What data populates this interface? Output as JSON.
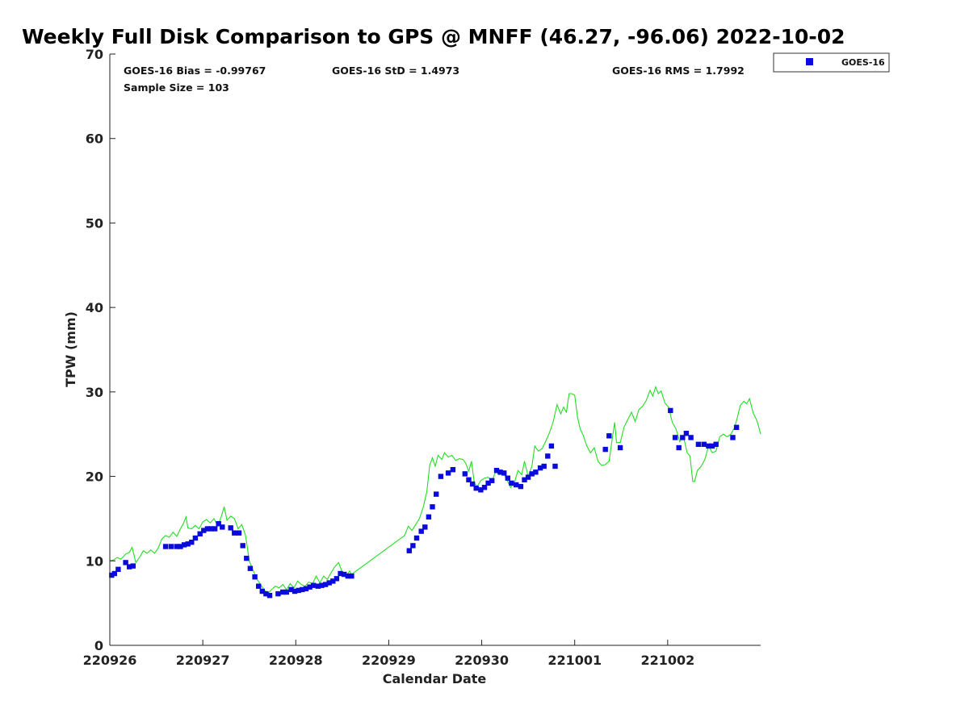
{
  "chart_data": {
    "type": "scatter",
    "title": "Weekly Full Disk Comparison to GPS @ MNFF (46.27, -96.06) 2022-10-02",
    "xlabel": "Calendar Date",
    "ylabel": "TPW (mm)",
    "xlim": [
      0,
      7
    ],
    "ylim": [
      0,
      70
    ],
    "x_unit": "days after 220926",
    "x_ticks": [
      {
        "value": 0,
        "label": "220926"
      },
      {
        "value": 1,
        "label": "220927"
      },
      {
        "value": 2,
        "label": "220928"
      },
      {
        "value": 3,
        "label": "220929"
      },
      {
        "value": 4,
        "label": "220930"
      },
      {
        "value": 5,
        "label": "221001"
      },
      {
        "value": 6,
        "label": "221002"
      }
    ],
    "y_ticks": [
      0,
      10,
      20,
      30,
      40,
      50,
      60,
      70
    ],
    "grid": false,
    "legend": {
      "placement": "top-right",
      "entries": [
        "GOES-16"
      ]
    },
    "stats": {
      "bias": "GOES-16 Bias = -0.99767",
      "std": "GOES-16 StD = 1.4973",
      "rms": "GOES-16 RMS = 1.7992",
      "sample": "Sample Size = 103"
    },
    "colors": {
      "goes": "#0a0adc",
      "gps": "#22dd22"
    },
    "series": [
      {
        "name": "GOES-16",
        "kind": "scatter",
        "points": [
          [
            0.02,
            8.3
          ],
          [
            0.05,
            8.5
          ],
          [
            0.09,
            9.0
          ],
          [
            0.17,
            9.8
          ],
          [
            0.21,
            9.3
          ],
          [
            0.25,
            9.4
          ],
          [
            0.6,
            11.7
          ],
          [
            0.66,
            11.7
          ],
          [
            0.72,
            11.7
          ],
          [
            0.76,
            11.7
          ],
          [
            0.8,
            11.9
          ],
          [
            0.84,
            12.0
          ],
          [
            0.88,
            12.2
          ],
          [
            0.92,
            12.7
          ],
          [
            0.97,
            13.2
          ],
          [
            1.01,
            13.6
          ],
          [
            1.05,
            13.8
          ],
          [
            1.09,
            13.8
          ],
          [
            1.13,
            13.8
          ],
          [
            1.17,
            14.4
          ],
          [
            1.21,
            14.0
          ],
          [
            1.3,
            13.9
          ],
          [
            1.34,
            13.3
          ],
          [
            1.39,
            13.3
          ],
          [
            1.43,
            11.8
          ],
          [
            1.47,
            10.3
          ],
          [
            1.51,
            9.1
          ],
          [
            1.56,
            8.1
          ],
          [
            1.6,
            7.0
          ],
          [
            1.64,
            6.4
          ],
          [
            1.68,
            6.1
          ],
          [
            1.72,
            5.9
          ],
          [
            1.81,
            6.1
          ],
          [
            1.86,
            6.3
          ],
          [
            1.9,
            6.3
          ],
          [
            1.95,
            6.6
          ],
          [
            1.99,
            6.4
          ],
          [
            2.03,
            6.5
          ],
          [
            2.07,
            6.6
          ],
          [
            2.11,
            6.7
          ],
          [
            2.15,
            6.9
          ],
          [
            2.19,
            7.1
          ],
          [
            2.24,
            7.0
          ],
          [
            2.28,
            7.1
          ],
          [
            2.32,
            7.2
          ],
          [
            2.36,
            7.4
          ],
          [
            2.4,
            7.6
          ],
          [
            2.44,
            7.9
          ],
          [
            2.48,
            8.5
          ],
          [
            2.52,
            8.4
          ],
          [
            2.56,
            8.2
          ],
          [
            2.6,
            8.2
          ],
          [
            3.22,
            11.2
          ],
          [
            3.26,
            11.8
          ],
          [
            3.3,
            12.7
          ],
          [
            3.35,
            13.5
          ],
          [
            3.39,
            14.0
          ],
          [
            3.43,
            15.2
          ],
          [
            3.47,
            16.4
          ],
          [
            3.51,
            17.9
          ],
          [
            3.56,
            20.0
          ],
          [
            3.64,
            20.4
          ],
          [
            3.69,
            20.8
          ],
          [
            3.82,
            20.3
          ],
          [
            3.86,
            19.6
          ],
          [
            3.9,
            19.1
          ],
          [
            3.94,
            18.6
          ],
          [
            3.99,
            18.4
          ],
          [
            4.03,
            18.7
          ],
          [
            4.07,
            19.2
          ],
          [
            4.11,
            19.5
          ],
          [
            4.16,
            20.7
          ],
          [
            4.2,
            20.5
          ],
          [
            4.24,
            20.4
          ],
          [
            4.28,
            19.8
          ],
          [
            4.32,
            19.2
          ],
          [
            4.37,
            19.0
          ],
          [
            4.42,
            18.8
          ],
          [
            4.46,
            19.6
          ],
          [
            4.5,
            19.9
          ],
          [
            4.54,
            20.3
          ],
          [
            4.58,
            20.5
          ],
          [
            4.63,
            21.0
          ],
          [
            4.67,
            21.2
          ],
          [
            4.71,
            22.4
          ],
          [
            4.75,
            23.6
          ],
          [
            4.79,
            21.2
          ],
          [
            5.33,
            23.2
          ],
          [
            5.37,
            24.8
          ],
          [
            5.49,
            23.4
          ],
          [
            6.03,
            27.8
          ],
          [
            6.08,
            24.6
          ],
          [
            6.12,
            23.4
          ],
          [
            6.16,
            24.6
          ],
          [
            6.2,
            25.1
          ],
          [
            6.25,
            24.6
          ],
          [
            6.33,
            23.8
          ],
          [
            6.39,
            23.8
          ],
          [
            6.44,
            23.6
          ],
          [
            6.48,
            23.6
          ],
          [
            6.52,
            23.8
          ],
          [
            6.7,
            24.6
          ],
          [
            6.74,
            25.8
          ]
        ]
      },
      {
        "name": "",
        "kind": "line",
        "points": [
          [
            0.0,
            10.0
          ],
          [
            0.04,
            10.1
          ],
          [
            0.08,
            10.4
          ],
          [
            0.12,
            10.2
          ],
          [
            0.17,
            10.8
          ],
          [
            0.21,
            11.0
          ],
          [
            0.24,
            11.6
          ],
          [
            0.28,
            9.8
          ],
          [
            0.33,
            10.6
          ],
          [
            0.36,
            11.2
          ],
          [
            0.4,
            10.9
          ],
          [
            0.44,
            11.3
          ],
          [
            0.48,
            10.9
          ],
          [
            0.52,
            11.5
          ],
          [
            0.56,
            12.6
          ],
          [
            0.6,
            13.0
          ],
          [
            0.64,
            12.8
          ],
          [
            0.68,
            13.4
          ],
          [
            0.72,
            12.9
          ],
          [
            0.76,
            13.8
          ],
          [
            0.79,
            14.4
          ],
          [
            0.82,
            15.2
          ],
          [
            0.84,
            13.9
          ],
          [
            0.88,
            13.8
          ],
          [
            0.92,
            14.2
          ],
          [
            0.96,
            13.8
          ],
          [
            1.0,
            14.6
          ],
          [
            1.04,
            14.9
          ],
          [
            1.08,
            14.5
          ],
          [
            1.12,
            15.0
          ],
          [
            1.16,
            14.1
          ],
          [
            1.2,
            15.3
          ],
          [
            1.23,
            16.4
          ],
          [
            1.26,
            14.8
          ],
          [
            1.3,
            15.3
          ],
          [
            1.34,
            15.0
          ],
          [
            1.38,
            13.8
          ],
          [
            1.42,
            14.3
          ],
          [
            1.46,
            13.0
          ],
          [
            1.5,
            10.0
          ],
          [
            1.54,
            8.9
          ],
          [
            1.58,
            7.9
          ],
          [
            1.62,
            7.2
          ],
          [
            1.66,
            6.6
          ],
          [
            1.7,
            6.1
          ],
          [
            1.74,
            6.6
          ],
          [
            1.78,
            7.0
          ],
          [
            1.82,
            6.8
          ],
          [
            1.86,
            7.2
          ],
          [
            1.9,
            6.6
          ],
          [
            1.94,
            7.3
          ],
          [
            1.98,
            6.8
          ],
          [
            2.02,
            7.6
          ],
          [
            2.06,
            7.2
          ],
          [
            2.1,
            7.0
          ],
          [
            2.14,
            7.5
          ],
          [
            2.18,
            7.3
          ],
          [
            2.22,
            8.2
          ],
          [
            2.26,
            7.4
          ],
          [
            2.3,
            8.2
          ],
          [
            2.34,
            7.8
          ],
          [
            2.38,
            8.6
          ],
          [
            2.42,
            9.3
          ],
          [
            2.46,
            9.8
          ],
          [
            2.5,
            8.6
          ],
          [
            2.54,
            8.2
          ],
          [
            2.58,
            8.8
          ],
          [
            2.6,
            8.4
          ],
          [
            3.17,
            13.0
          ],
          [
            3.21,
            14.1
          ],
          [
            3.25,
            13.6
          ],
          [
            3.29,
            14.3
          ],
          [
            3.33,
            15.0
          ],
          [
            3.37,
            16.3
          ],
          [
            3.41,
            18.2
          ],
          [
            3.44,
            21.3
          ],
          [
            3.47,
            22.2
          ],
          [
            3.5,
            21.2
          ],
          [
            3.53,
            22.5
          ],
          [
            3.57,
            22.0
          ],
          [
            3.6,
            22.8
          ],
          [
            3.64,
            22.3
          ],
          [
            3.68,
            22.5
          ],
          [
            3.72,
            21.9
          ],
          [
            3.76,
            22.1
          ],
          [
            3.8,
            22.0
          ],
          [
            3.83,
            21.5
          ],
          [
            3.86,
            20.6
          ],
          [
            3.89,
            21.8
          ],
          [
            3.92,
            19.2
          ],
          [
            3.95,
            18.8
          ],
          [
            3.99,
            19.5
          ],
          [
            4.03,
            19.8
          ],
          [
            4.07,
            19.9
          ],
          [
            4.11,
            19.4
          ],
          [
            4.15,
            20.6
          ],
          [
            4.19,
            20.2
          ],
          [
            4.23,
            20.5
          ],
          [
            4.27,
            19.6
          ],
          [
            4.31,
            18.7
          ],
          [
            4.35,
            19.2
          ],
          [
            4.39,
            20.7
          ],
          [
            4.43,
            20.2
          ],
          [
            4.46,
            21.8
          ],
          [
            4.5,
            20.0
          ],
          [
            4.54,
            21.2
          ],
          [
            4.57,
            23.6
          ],
          [
            4.61,
            23.0
          ],
          [
            4.65,
            23.3
          ],
          [
            4.69,
            24.2
          ],
          [
            4.73,
            25.2
          ],
          [
            4.77,
            26.5
          ],
          [
            4.81,
            28.5
          ],
          [
            4.85,
            27.4
          ],
          [
            4.88,
            28.2
          ],
          [
            4.91,
            27.6
          ],
          [
            4.94,
            29.8
          ],
          [
            4.97,
            29.8
          ],
          [
            5.0,
            29.6
          ],
          [
            5.03,
            27.0
          ],
          [
            5.06,
            25.6
          ],
          [
            5.09,
            24.9
          ],
          [
            5.13,
            23.6
          ],
          [
            5.17,
            22.8
          ],
          [
            5.21,
            23.4
          ],
          [
            5.25,
            21.8
          ],
          [
            5.29,
            21.3
          ],
          [
            5.33,
            21.4
          ],
          [
            5.37,
            21.8
          ],
          [
            5.4,
            24.2
          ],
          [
            5.43,
            26.4
          ],
          [
            5.45,
            24.0
          ],
          [
            5.49,
            24.0
          ],
          [
            5.53,
            25.8
          ],
          [
            5.57,
            26.7
          ],
          [
            5.61,
            27.6
          ],
          [
            5.65,
            26.5
          ],
          [
            5.69,
            27.9
          ],
          [
            5.73,
            28.3
          ],
          [
            5.77,
            29.0
          ],
          [
            5.81,
            30.2
          ],
          [
            5.84,
            29.5
          ],
          [
            5.87,
            30.6
          ],
          [
            5.9,
            29.8
          ],
          [
            5.93,
            30.1
          ],
          [
            5.97,
            28.7
          ],
          [
            6.01,
            28.2
          ],
          [
            6.05,
            26.4
          ],
          [
            6.09,
            25.6
          ],
          [
            6.13,
            24.1
          ],
          [
            6.17,
            24.7
          ],
          [
            6.21,
            22.8
          ],
          [
            6.24,
            22.4
          ],
          [
            6.27,
            19.4
          ],
          [
            6.29,
            19.4
          ],
          [
            6.32,
            20.7
          ],
          [
            6.36,
            21.2
          ],
          [
            6.4,
            22.0
          ],
          [
            6.44,
            23.6
          ],
          [
            6.48,
            22.8
          ],
          [
            6.52,
            23.0
          ],
          [
            6.56,
            24.7
          ],
          [
            6.6,
            25.0
          ],
          [
            6.64,
            24.7
          ],
          [
            6.68,
            25.0
          ],
          [
            6.72,
            25.8
          ],
          [
            6.75,
            27.0
          ],
          [
            6.78,
            28.4
          ],
          [
            6.82,
            28.9
          ],
          [
            6.85,
            28.6
          ],
          [
            6.88,
            29.2
          ],
          [
            6.92,
            27.5
          ],
          [
            6.96,
            26.6
          ],
          [
            7.0,
            25.0
          ]
        ]
      }
    ]
  }
}
